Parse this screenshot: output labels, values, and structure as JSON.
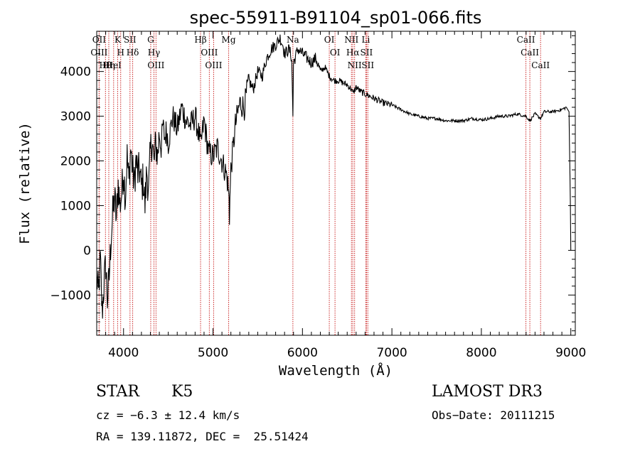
{
  "chart_data": {
    "type": "line",
    "title": "spec-55911-B91104_sp01-066.fits",
    "xlabel": "Wavelength (Å)",
    "ylabel": "Flux (relative)",
    "xlim": [
      3700,
      9050
    ],
    "ylim": [
      -1900,
      4900
    ],
    "xticks": [
      4000,
      5000,
      6000,
      7000,
      8000,
      9000
    ],
    "yticks": [
      -1000,
      0,
      1000,
      2000,
      3000,
      4000
    ],
    "spectrum": {
      "x": [
        3700,
        3720,
        3740,
        3760,
        3780,
        3800,
        3820,
        3840,
        3860,
        3880,
        3900,
        3920,
        3940,
        3960,
        3980,
        4000,
        4020,
        4040,
        4060,
        4080,
        4100,
        4120,
        4140,
        4160,
        4180,
        4200,
        4220,
        4240,
        4260,
        4280,
        4300,
        4320,
        4340,
        4360,
        4380,
        4400,
        4420,
        4440,
        4460,
        4480,
        4500,
        4550,
        4600,
        4650,
        4700,
        4750,
        4800,
        4850,
        4861,
        4880,
        4900,
        4950,
        5000,
        5050,
        5100,
        5150,
        5170,
        5180,
        5184,
        5200,
        5250,
        5300,
        5350,
        5400,
        5450,
        5500,
        5550,
        5600,
        5650,
        5700,
        5750,
        5780,
        5800,
        5850,
        5880,
        5893,
        5900,
        5950,
        6000,
        6050,
        6100,
        6150,
        6200,
        6250,
        6300,
        6350,
        6400,
        6450,
        6500,
        6550,
        6563,
        6600,
        6650,
        6700,
        6750,
        6800,
        6900,
        7000,
        7100,
        7200,
        7300,
        7400,
        7500,
        7600,
        7700,
        7800,
        7900,
        8000,
        8100,
        8200,
        8300,
        8400,
        8498,
        8542,
        8600,
        8662,
        8700,
        8800,
        8900,
        8950,
        8980,
        8995,
        9000
      ],
      "y": [
        -600,
        -1000,
        -200,
        -1400,
        -800,
        -300,
        -1100,
        -600,
        300,
        800,
        1200,
        700,
        1500,
        1000,
        1300,
        1800,
        1200,
        2100,
        1500,
        2300,
        1800,
        1500,
        2000,
        1700,
        1800,
        1400,
        1600,
        1000,
        1800,
        1300,
        2200,
        2500,
        1900,
        2400,
        2100,
        2600,
        2300,
        2800,
        2500,
        2700,
        2400,
        3000,
        2700,
        3200,
        2900,
        2800,
        3000,
        2500,
        2300,
        2600,
        2900,
        2200,
        2100,
        2300,
        2000,
        1700,
        1400,
        1100,
        800,
        1800,
        2800,
        3300,
        3200,
        3800,
        3600,
        4000,
        3900,
        4300,
        4500,
        4600,
        4750,
        4600,
        4400,
        4500,
        4300,
        3000,
        4200,
        4500,
        4400,
        4300,
        4200,
        4300,
        4000,
        4100,
        3900,
        3800,
        3800,
        3750,
        3700,
        3600,
        3500,
        3650,
        3550,
        3500,
        3450,
        3400,
        3300,
        3250,
        3150,
        3050,
        3000,
        2950,
        2950,
        2900,
        2900,
        2900,
        2950,
        2920,
        2950,
        3000,
        3000,
        3050,
        3000,
        2900,
        3050,
        2950,
        3100,
        3100,
        3150,
        3200,
        3100,
        1000,
        0
      ]
    },
    "reference_lines": [
      {
        "label": "Hθ",
        "x": 3798
      },
      {
        "label": "OII",
        "x": 3727
      },
      {
        "label": "OIII",
        "x": 3727
      },
      {
        "label": "Hη",
        "x": 3835
      },
      {
        "label": "HeI",
        "x": 3889
      },
      {
        "label": "K",
        "x": 3934
      },
      {
        "label": "H",
        "x": 3968
      },
      {
        "label": "SII",
        "x": 4072
      },
      {
        "label": "Hδ",
        "x": 4102
      },
      {
        "label": "G",
        "x": 4304
      },
      {
        "label": "Hγ",
        "x": 4340
      },
      {
        "label": "OIII",
        "x": 4363
      },
      {
        "label": "Hβ",
        "x": 4861
      },
      {
        "label": "OIII",
        "x": 4959
      },
      {
        "label": "OIII",
        "x": 5007
      },
      {
        "label": "Mg",
        "x": 5175
      },
      {
        "label": "Na",
        "x": 5893
      },
      {
        "label": "OI",
        "x": 6300
      },
      {
        "label": "OI",
        "x": 6364
      },
      {
        "label": "NII",
        "x": 6548
      },
      {
        "label": "Hα",
        "x": 6563
      },
      {
        "label": "NII",
        "x": 6583
      },
      {
        "label": "Li",
        "x": 6708
      },
      {
        "label": "SII",
        "x": 6716
      },
      {
        "label": "SII",
        "x": 6731
      },
      {
        "label": "CaII",
        "x": 8498
      },
      {
        "label": "CaII",
        "x": 8542
      },
      {
        "label": "CaII",
        "x": 8662
      }
    ]
  },
  "info": {
    "class": "STAR",
    "subclass": "K5",
    "survey": "LAMOST DR3",
    "cz": "cz = −6.3 ± 12.4 km/s",
    "obs_date": "Obs−Date: 20111215",
    "coords": "RA = 139.11872, DEC =  25.51424"
  },
  "colors": {
    "spectrum": "#000000",
    "reference_line": "#cc2a2a",
    "axis": "#000000",
    "background": "#ffffff"
  }
}
